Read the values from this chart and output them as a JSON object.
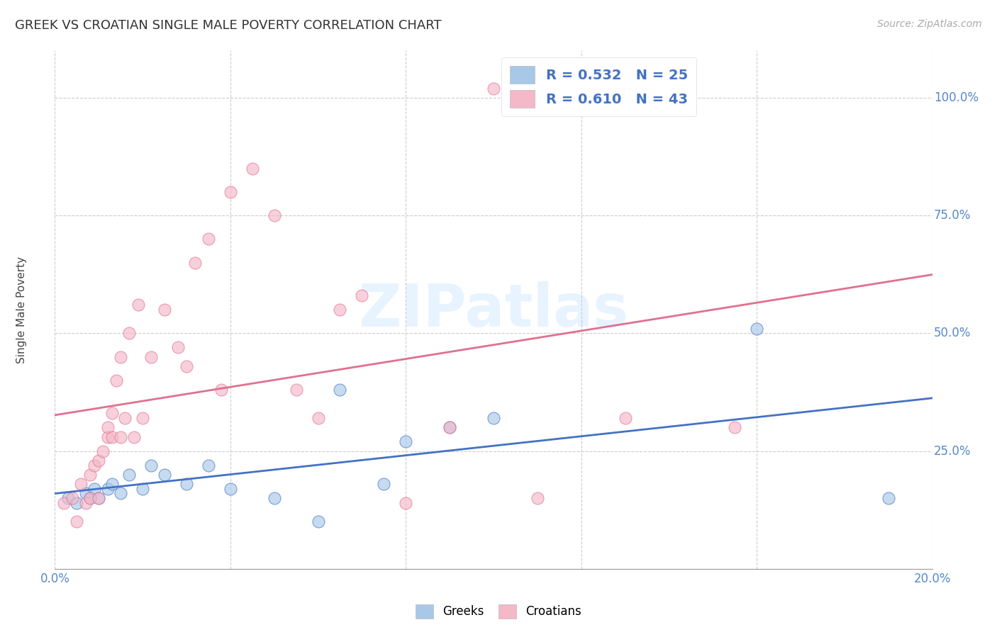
{
  "title": "GREEK VS CROATIAN SINGLE MALE POVERTY CORRELATION CHART",
  "source": "Source: ZipAtlas.com",
  "ylabel": "Single Male Poverty",
  "xlim": [
    0.0,
    0.2
  ],
  "ylim": [
    0.0,
    1.1
  ],
  "greek_color": "#a8c8e8",
  "croatian_color": "#f4b8c8",
  "greek_line_color": "#4472c4",
  "croatian_line_color": "#e07090",
  "greek_R": 0.532,
  "greek_N": 25,
  "croatian_R": 0.61,
  "croatian_N": 43,
  "legend_label_greek": "Greeks",
  "legend_label_croatian": "Croatians",
  "greek_x": [
    0.003,
    0.005,
    0.007,
    0.008,
    0.009,
    0.01,
    0.012,
    0.013,
    0.015,
    0.017,
    0.02,
    0.022,
    0.025,
    0.03,
    0.035,
    0.04,
    0.05,
    0.06,
    0.065,
    0.075,
    0.08,
    0.09,
    0.1,
    0.16,
    0.19
  ],
  "greek_y": [
    0.15,
    0.14,
    0.16,
    0.15,
    0.17,
    0.15,
    0.17,
    0.18,
    0.16,
    0.2,
    0.17,
    0.22,
    0.2,
    0.18,
    0.22,
    0.17,
    0.15,
    0.1,
    0.38,
    0.18,
    0.27,
    0.3,
    0.32,
    0.51,
    0.15
  ],
  "croatian_x": [
    0.002,
    0.004,
    0.005,
    0.006,
    0.007,
    0.008,
    0.008,
    0.009,
    0.01,
    0.01,
    0.011,
    0.012,
    0.012,
    0.013,
    0.013,
    0.014,
    0.015,
    0.015,
    0.016,
    0.017,
    0.018,
    0.019,
    0.02,
    0.022,
    0.025,
    0.028,
    0.03,
    0.032,
    0.035,
    0.038,
    0.04,
    0.045,
    0.05,
    0.055,
    0.06,
    0.065,
    0.07,
    0.08,
    0.09,
    0.1,
    0.11,
    0.13,
    0.155
  ],
  "croatian_y": [
    0.14,
    0.15,
    0.1,
    0.18,
    0.14,
    0.15,
    0.2,
    0.22,
    0.15,
    0.23,
    0.25,
    0.28,
    0.3,
    0.28,
    0.33,
    0.4,
    0.28,
    0.45,
    0.32,
    0.5,
    0.28,
    0.56,
    0.32,
    0.45,
    0.55,
    0.47,
    0.43,
    0.65,
    0.7,
    0.38,
    0.8,
    0.85,
    0.75,
    0.38,
    0.32,
    0.55,
    0.58,
    0.14,
    0.3,
    1.02,
    0.15,
    0.32,
    0.3
  ]
}
